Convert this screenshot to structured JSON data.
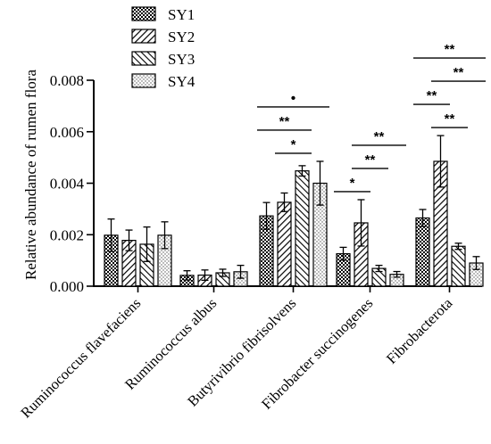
{
  "chart_data": {
    "type": "bar",
    "title": "",
    "xlabel": "",
    "ylabel": "Relative abundance of rumen flora",
    "ylim": [
      0,
      0.008
    ],
    "yticks": [
      "0.000",
      "0.002",
      "0.004",
      "0.006",
      "0.008"
    ],
    "grid": false,
    "legend_position": "top-center",
    "categories": [
      "Ruminococcus flavefaciens",
      "Ruminococcus albus",
      "Butyrivibrio fibrisolvens",
      "Fibrobacter succinogenes",
      "Fibrobacterota"
    ],
    "series": [
      {
        "name": "SY1",
        "pattern": "crosshatch",
        "values": [
          0.00198,
          0.00042,
          0.00273,
          0.00126,
          0.00265
        ],
        "errors": [
          0.00063,
          0.00018,
          0.00052,
          0.00025,
          0.00033
        ]
      },
      {
        "name": "SY2",
        "pattern": "diagonal-right",
        "values": [
          0.00178,
          0.00043,
          0.00326,
          0.00246,
          0.00485
        ],
        "errors": [
          0.0004,
          0.0002,
          0.00036,
          0.0009,
          0.001
        ]
      },
      {
        "name": "SY3",
        "pattern": "diagonal-left",
        "values": [
          0.00163,
          0.00052,
          0.00448,
          0.00069,
          0.00155
        ],
        "errors": [
          0.00067,
          0.00014,
          0.0002,
          0.00012,
          0.00012
        ]
      },
      {
        "name": "SY4",
        "pattern": "dots",
        "values": [
          0.00198,
          0.00056,
          0.004,
          0.00046,
          0.0009
        ],
        "errors": [
          0.00052,
          0.00025,
          0.00085,
          0.00011,
          0.00025
        ]
      }
    ],
    "annotations": [
      {
        "category": 2,
        "from_series": 0,
        "to_series": 3,
        "label": "•"
      },
      {
        "category": 2,
        "from_series": 0,
        "to_series": 2,
        "label": "**"
      },
      {
        "category": 2,
        "from_series": 1,
        "to_series": 2,
        "label": "*"
      },
      {
        "category": 3,
        "from_series": 0,
        "to_series": 1,
        "label": "*"
      },
      {
        "category": 3,
        "from_series": 1,
        "to_series": 2,
        "label": "**"
      },
      {
        "category": 3,
        "from_series": 1,
        "to_series": 3,
        "label": "**"
      },
      {
        "category": 4,
        "from_series": 0,
        "to_series": 3,
        "label": "**"
      },
      {
        "category": 4,
        "from_series": 1,
        "to_series": 3,
        "label": "**"
      },
      {
        "category": 4,
        "from_series": 1,
        "to_series": 2,
        "label": "**"
      },
      {
        "category": 4,
        "from_series": 0,
        "to_series": 1,
        "label": "**"
      }
    ]
  }
}
